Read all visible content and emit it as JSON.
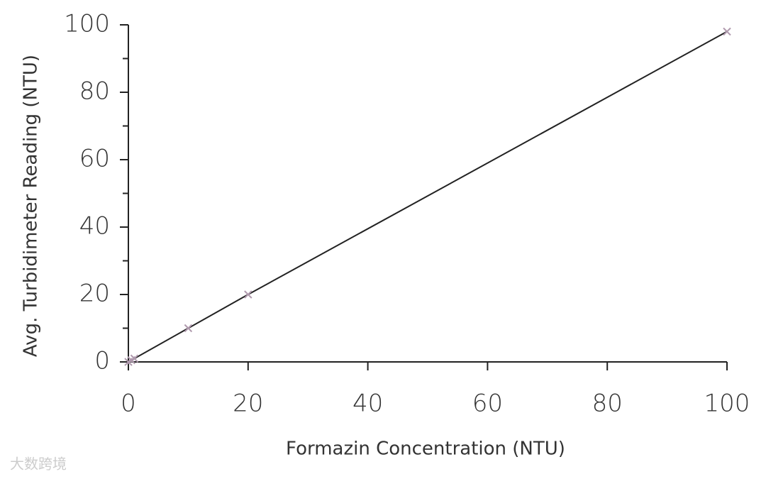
{
  "chart_data": {
    "type": "scatter",
    "x_label": "Formazin Concentration (NTU)",
    "y_label": "Avg. Turbidimeter Reading (NTU)",
    "series": [
      {
        "x": [
          0,
          0.5,
          1,
          10,
          20,
          100
        ],
        "values": [
          0,
          0.5,
          1,
          10,
          20,
          98
        ],
        "color": "#b09aae",
        "line_color": "#222222"
      }
    ],
    "xlim": [
      0,
      100
    ],
    "xticks": [
      0,
      20,
      40,
      60,
      80,
      100
    ],
    "ylim": [
      0,
      100
    ],
    "yticks": [
      0,
      20,
      40,
      60,
      80,
      100
    ],
    "yminorticks": [
      10,
      30,
      50,
      70,
      90
    ],
    "connect_points": true,
    "watermark": "大数跨境"
  }
}
